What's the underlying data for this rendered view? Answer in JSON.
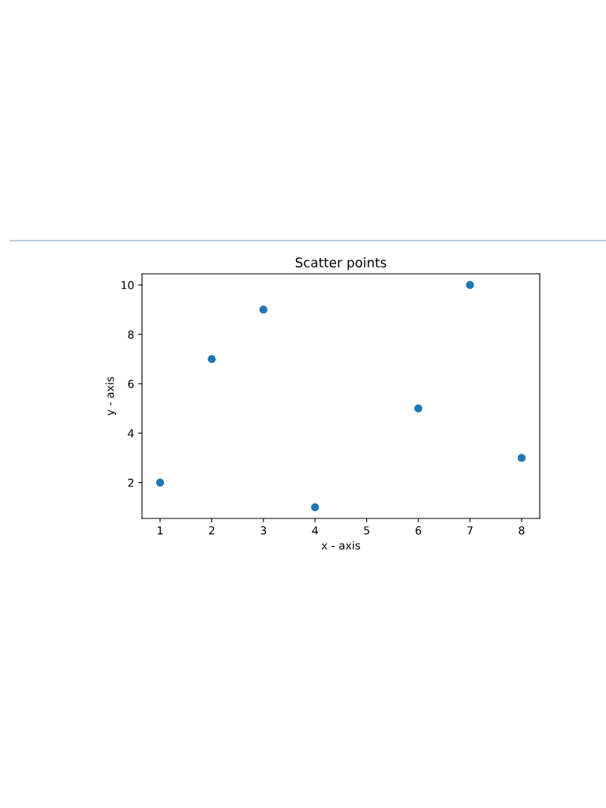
{
  "chart_data": {
    "type": "scatter",
    "title": "Scatter points",
    "xlabel": "x - axis",
    "ylabel": "y - axis",
    "x": [
      1,
      2,
      3,
      4,
      6,
      7,
      8
    ],
    "series": [
      {
        "color": "#1f77b4",
        "values": [
          2,
          7,
          9,
          1,
          5,
          10,
          3
        ]
      }
    ],
    "xlim": [
      0.65,
      8.35
    ],
    "xticks": [
      1,
      2,
      3,
      4,
      5,
      6,
      7,
      8
    ],
    "ylim": [
      0.55,
      10.45
    ],
    "yticks": [
      2,
      4,
      6,
      8,
      10
    ],
    "marker": "circle",
    "grid": false
  }
}
